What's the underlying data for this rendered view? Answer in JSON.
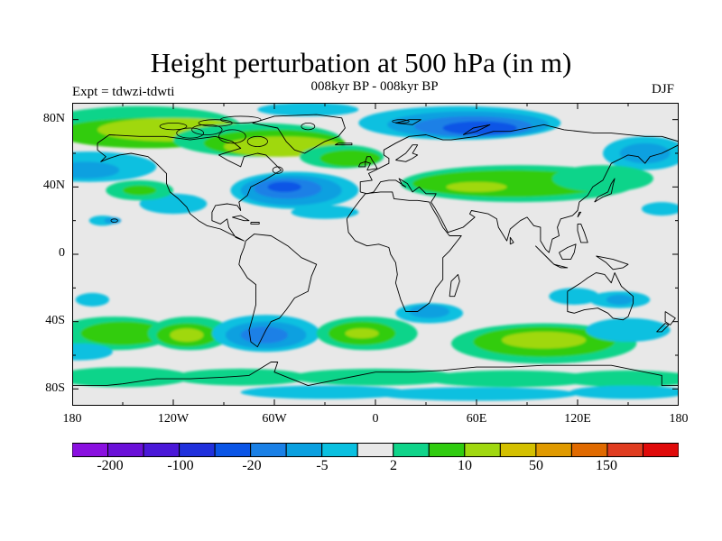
{
  "header": {
    "title": "Height perturbation at 500 hPa (in m)",
    "subtitle": "008kyr BP - 008kyr BP",
    "left_label": "Expt = tdwzi-tdwti",
    "right_label": "DJF"
  },
  "axes": {
    "lat_labels": [
      "80N",
      "40N",
      "0",
      "40S",
      "80S"
    ],
    "lon_labels": [
      "180",
      "120W",
      "60W",
      "0",
      "60E",
      "120E",
      "180"
    ]
  },
  "colorbar": {
    "colors": [
      "#8a10e0",
      "#6a10d8",
      "#4a18d8",
      "#2030dc",
      "#0a55e6",
      "#1a80e6",
      "#0aa0e0",
      "#0ac0e0",
      "#e8e8e8",
      "#10d48a",
      "#30cc10",
      "#a0d810",
      "#d4c000",
      "#e09a00",
      "#e06a00",
      "#e03c20",
      "#e00a0a"
    ],
    "tick_labels": [
      "-200",
      "-100",
      "-20",
      "-5",
      "2",
      "10",
      "50",
      "150"
    ]
  },
  "field_colors": {
    "neutral": "#e8e8e8",
    "neg_light": "#0ac0e0",
    "neg_mid": "#0aa0e0",
    "neg_strong": "#1a80e6",
    "neg_deep": "#0a55e6",
    "pos_light": "#10d48a",
    "pos_mid": "#30cc10",
    "pos_strong": "#a0d810"
  }
}
